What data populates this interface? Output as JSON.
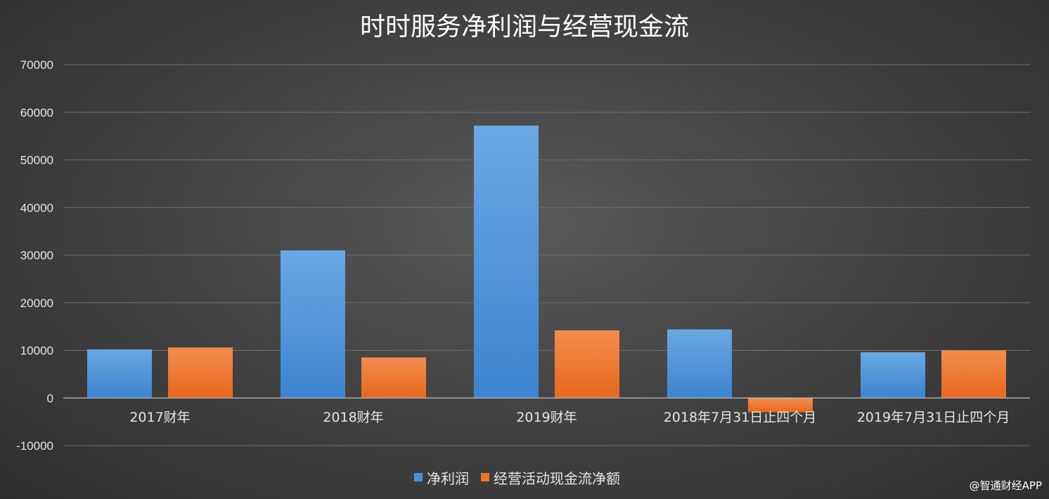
{
  "chart_data": {
    "type": "bar",
    "title": "时时服务净利润与经营现金流",
    "categories": [
      "2017财年",
      "2018财年",
      "2019财年",
      "2018年7月31日止四个月",
      "2019年7月31日止四个月"
    ],
    "series": [
      {
        "name": "净利润",
        "values": [
          10200,
          31000,
          57200,
          14400,
          9600
        ],
        "color": "#4a8fd6"
      },
      {
        "name": "经营活动现金流净额",
        "values": [
          10600,
          8500,
          14200,
          -3000,
          10000
        ],
        "color": "#ee7426"
      }
    ],
    "ylim": [
      -10000,
      70000
    ],
    "yticks": [
      70000,
      60000,
      50000,
      40000,
      30000,
      20000,
      10000,
      0,
      -10000
    ],
    "grid": true,
    "legend_position": "bottom-center",
    "xlabel": "",
    "ylabel": ""
  },
  "watermark": "@智通财经APP"
}
